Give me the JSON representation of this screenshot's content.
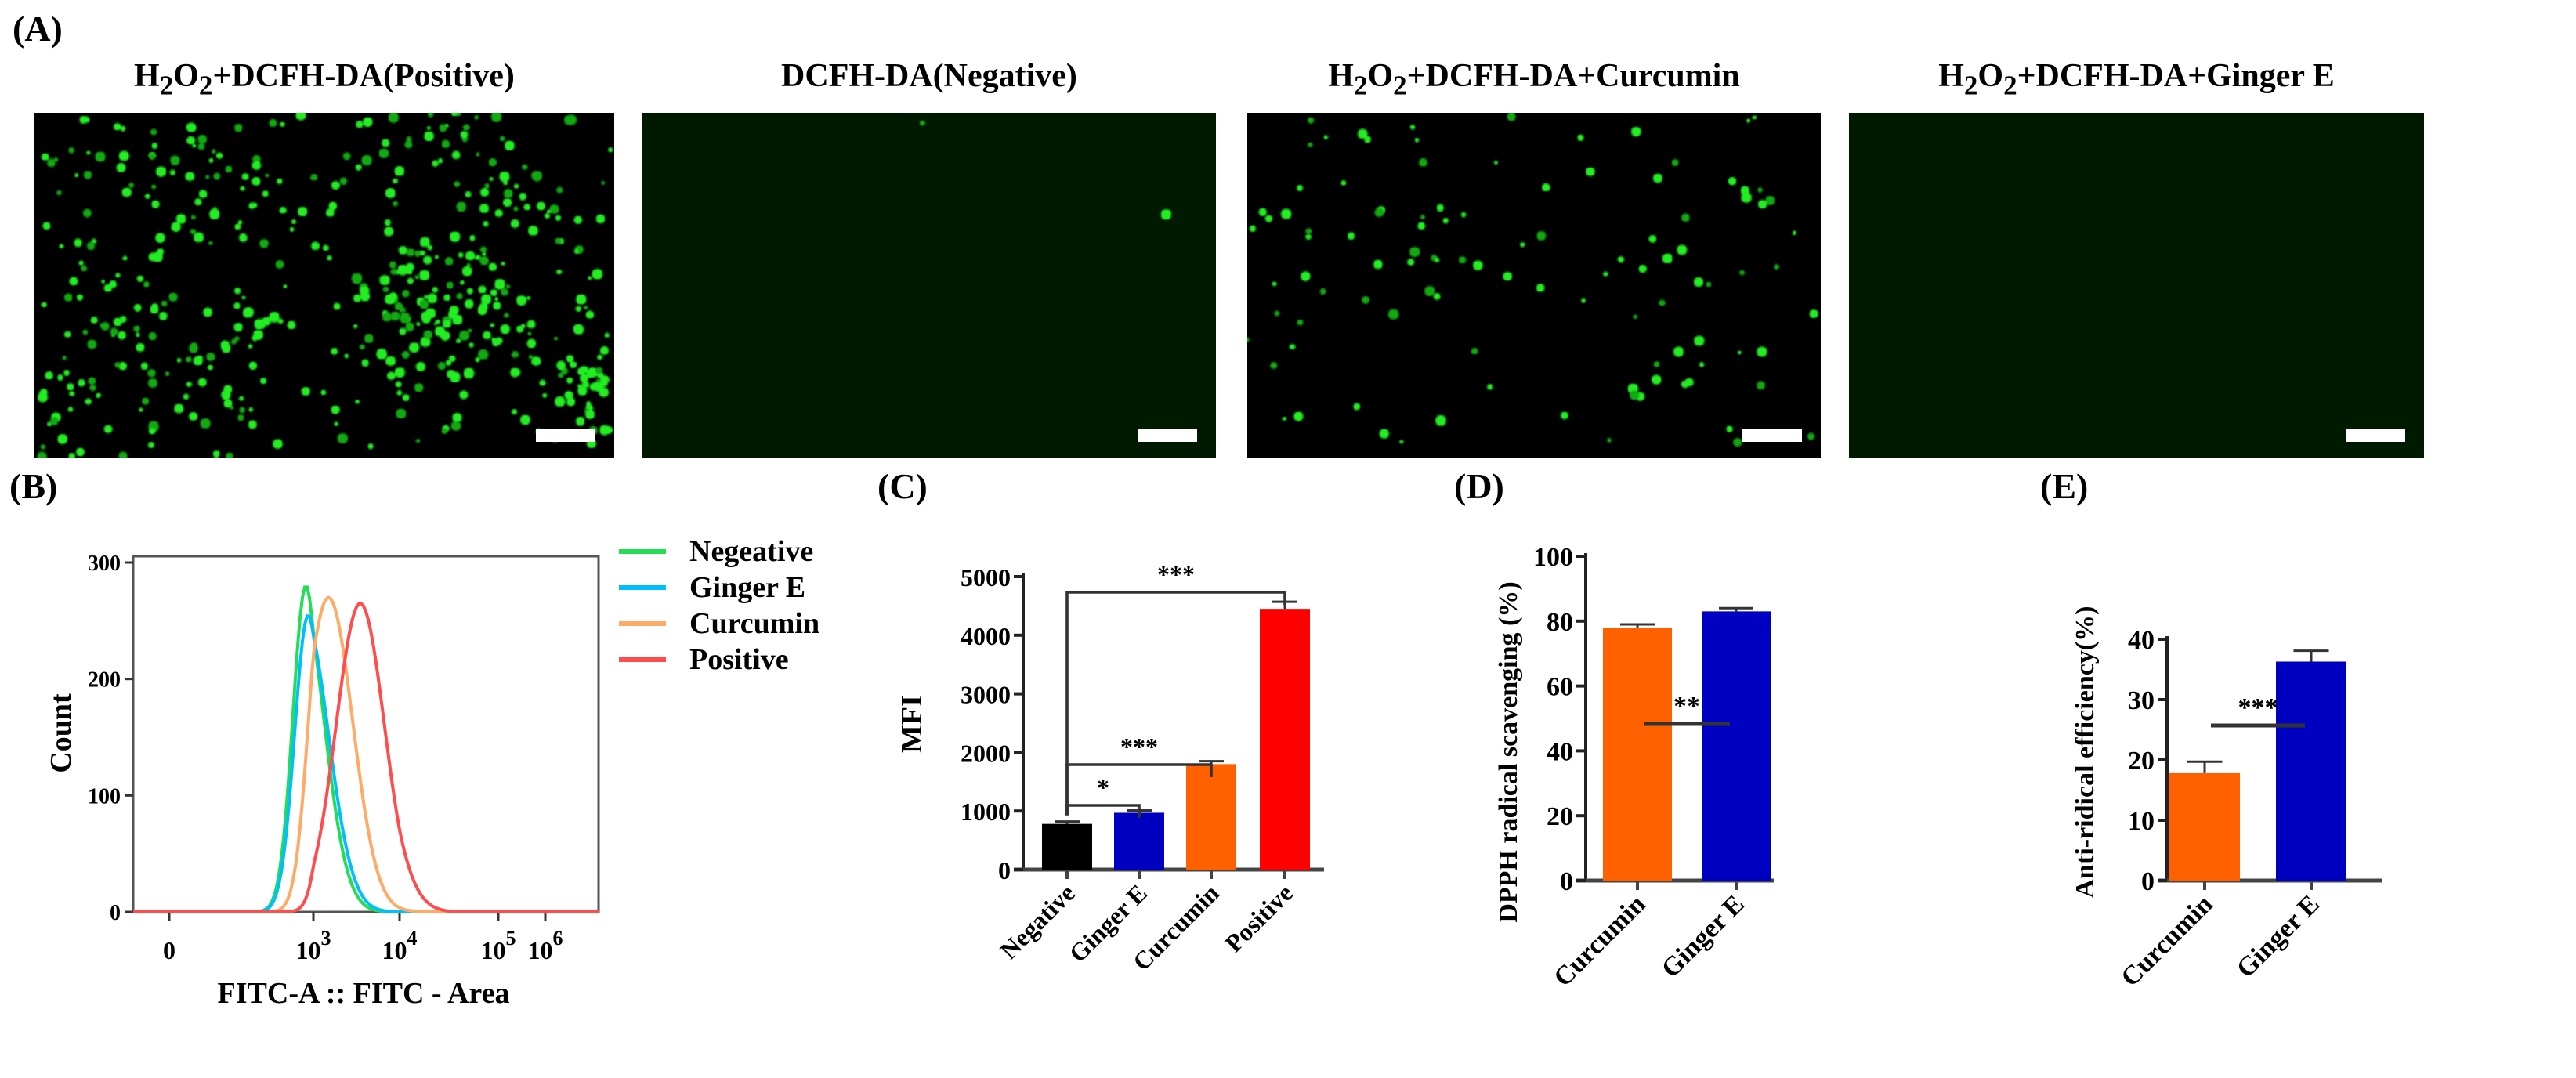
{
  "panel_labels": {
    "A": "(A)",
    "B": "(B)",
    "C": "(C)",
    "D": "(D)",
    "E": "(E)"
  },
  "micrographs": [
    {
      "title_parts": [
        "H",
        "2",
        "O",
        "2",
        "+DCFH-DA(Positive)"
      ],
      "fluorescence": "high"
    },
    {
      "title_parts": [
        "",
        "",
        "",
        "",
        "DCFH-DA(Negative)"
      ],
      "fluorescence": "none"
    },
    {
      "title_parts": [
        "H",
        "2",
        "O",
        "2",
        "+DCFH-DA+Curcumin"
      ],
      "fluorescence": "moderate"
    },
    {
      "title_parts": [
        "H",
        "2",
        "O",
        "2",
        "+DCFH-DA+Ginger E"
      ],
      "fluorescence": "none"
    }
  ],
  "colors": {
    "micro_bg": "#000000",
    "cells": "#22ee22",
    "scale_bar": "#ffffff"
  },
  "chart_data": [
    {
      "id": "B",
      "type": "line",
      "subtype": "flow-cytometry histogram",
      "xlabel": "FITC-A :: FITC - Area",
      "ylabel": "Count",
      "x_scale": "biexponential",
      "x_ticks": [
        {
          "base": "0",
          "exp": ""
        },
        {
          "base": "10",
          "exp": "3"
        },
        {
          "base": "10",
          "exp": "4"
        },
        {
          "base": "10",
          "exp": "5"
        },
        {
          "base": "10",
          "exp": "6"
        }
      ],
      "y_ticks": [
        "0",
        "100",
        "200",
        "300"
      ],
      "ylim": [
        0,
        300
      ],
      "legend_position": "right",
      "series": [
        {
          "name": "Negeative",
          "color": "#22dd55",
          "peak_x": 700,
          "peak_count": 280,
          "spread_decades": 0.27
        },
        {
          "name": "Ginger E",
          "color": "#00bfff",
          "peak_x": 780,
          "peak_count": 255,
          "spread_decades": 0.28
        },
        {
          "name": "Curcumin",
          "color": "#ffaa66",
          "peak_x": 1500,
          "peak_count": 270,
          "spread_decades": 0.28
        },
        {
          "name": "Positive",
          "color": "#ff4d4d",
          "peak_x": 3500,
          "peak_count": 265,
          "spread_decades": 0.28
        }
      ]
    },
    {
      "id": "C",
      "type": "bar",
      "ylabel": "MFI",
      "categories": [
        "Negative",
        "Ginger E",
        "Curcumin",
        "Positive"
      ],
      "values": [
        780,
        970,
        1800,
        4450
      ],
      "errors": [
        40,
        40,
        50,
        120
      ],
      "colors": [
        "#000000",
        "#0000c0",
        "#ff6000",
        "#ff0000"
      ],
      "ylim": [
        0,
        5000
      ],
      "y_ticks": [
        "0",
        "1000",
        "2000",
        "3000",
        "4000",
        "5000"
      ],
      "significance": [
        {
          "from": 0,
          "to": 1,
          "label": "*"
        },
        {
          "from": 0,
          "to": 2,
          "label": "***"
        },
        {
          "from": 0,
          "to": 3,
          "label": "***"
        }
      ]
    },
    {
      "id": "D",
      "type": "bar",
      "ylabel": "DPPH radical scavenging (%)",
      "categories": [
        "Curcumin",
        "Ginger E"
      ],
      "values": [
        78,
        83
      ],
      "errors": [
        1,
        1
      ],
      "colors": [
        "#ff6000",
        "#0000c0"
      ],
      "ylim": [
        0,
        100
      ],
      "y_ticks": [
        "0",
        "20",
        "40",
        "60",
        "80",
        "100"
      ],
      "significance": [
        {
          "from": 0,
          "to": 1,
          "label": "**"
        }
      ]
    },
    {
      "id": "E",
      "type": "bar",
      "ylabel": "Anti-ridical  efficiency(%)",
      "categories": [
        "Curcumin",
        "Ginger E"
      ],
      "values": [
        17.8,
        36.3
      ],
      "errors": [
        1.9,
        1.8
      ],
      "colors": [
        "#ff6000",
        "#0000c0"
      ],
      "ylim": [
        0,
        40
      ],
      "y_ticks": [
        "0",
        "10",
        "20",
        "30",
        "40"
      ],
      "significance": [
        {
          "from": 0,
          "to": 1,
          "label": "***"
        }
      ]
    }
  ]
}
